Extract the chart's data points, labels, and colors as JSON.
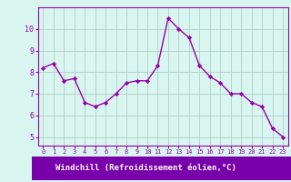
{
  "x": [
    0,
    1,
    2,
    3,
    4,
    5,
    6,
    7,
    8,
    9,
    10,
    11,
    12,
    13,
    14,
    15,
    16,
    17,
    18,
    19,
    20,
    21,
    22,
    23
  ],
  "y": [
    8.2,
    8.4,
    7.6,
    7.7,
    6.6,
    6.4,
    6.6,
    7.0,
    7.5,
    7.6,
    7.6,
    8.3,
    10.5,
    10.0,
    9.6,
    8.3,
    7.8,
    7.5,
    7.0,
    7.0,
    6.6,
    6.4,
    5.4,
    5.0
  ],
  "line_color": "#9900AA",
  "marker": "D",
  "marker_size": 2.2,
  "line_width": 1.0,
  "bg_color": "#d8f5f0",
  "grid_color": "#b0cfc8",
  "xlabel": "Windchill (Refroidissement éolien,°C)",
  "xlabel_bg": "#7700AA",
  "xlabel_fg": "#ffffff",
  "yticks": [
    5,
    6,
    7,
    8,
    9,
    10
  ],
  "xticks": [
    0,
    1,
    2,
    3,
    4,
    5,
    6,
    7,
    8,
    9,
    10,
    11,
    12,
    13,
    14,
    15,
    16,
    17,
    18,
    19,
    20,
    21,
    22,
    23
  ],
  "ylim": [
    4.6,
    11.0
  ],
  "xlim": [
    -0.5,
    23.5
  ],
  "tick_color": "#9900AA",
  "spine_color": "#9900AA"
}
